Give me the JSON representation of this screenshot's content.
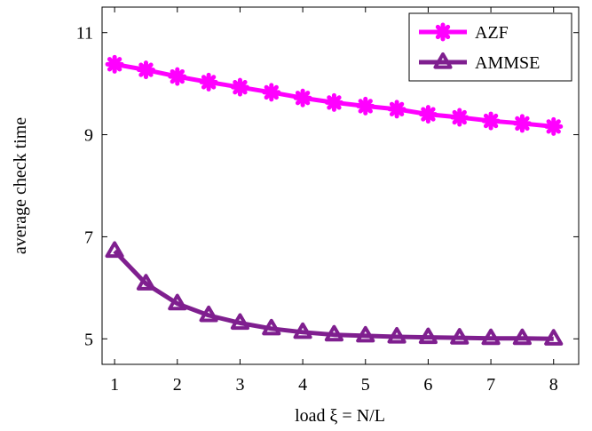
{
  "chart_data": {
    "type": "line",
    "xlabel": "load ξ = N/L",
    "ylabel": "average check time",
    "xlim": [
      0.8,
      8.4
    ],
    "ylim": [
      4.5,
      11.5
    ],
    "xticks": [
      1,
      2,
      3,
      4,
      5,
      6,
      7,
      8
    ],
    "yticks": [
      5,
      7,
      9,
      11
    ],
    "grid": false,
    "legend_position": "top-right",
    "x": [
      1,
      1.5,
      2,
      2.5,
      3,
      3.5,
      4,
      4.5,
      5,
      5.5,
      6,
      6.5,
      7,
      7.5,
      8
    ],
    "series": [
      {
        "name": "AZF",
        "color": "#ff00ff",
        "marker": "asterisk",
        "values": [
          10.38,
          10.27,
          10.14,
          10.03,
          9.93,
          9.83,
          9.72,
          9.63,
          9.56,
          9.5,
          9.4,
          9.34,
          9.27,
          9.22,
          9.16
        ]
      },
      {
        "name": "AMMSE",
        "color": "#7f1f8f",
        "marker": "triangle",
        "values": [
          6.72,
          6.08,
          5.69,
          5.46,
          5.31,
          5.2,
          5.13,
          5.08,
          5.06,
          5.04,
          5.03,
          5.02,
          5.01,
          5.01,
          5.0
        ]
      }
    ]
  }
}
